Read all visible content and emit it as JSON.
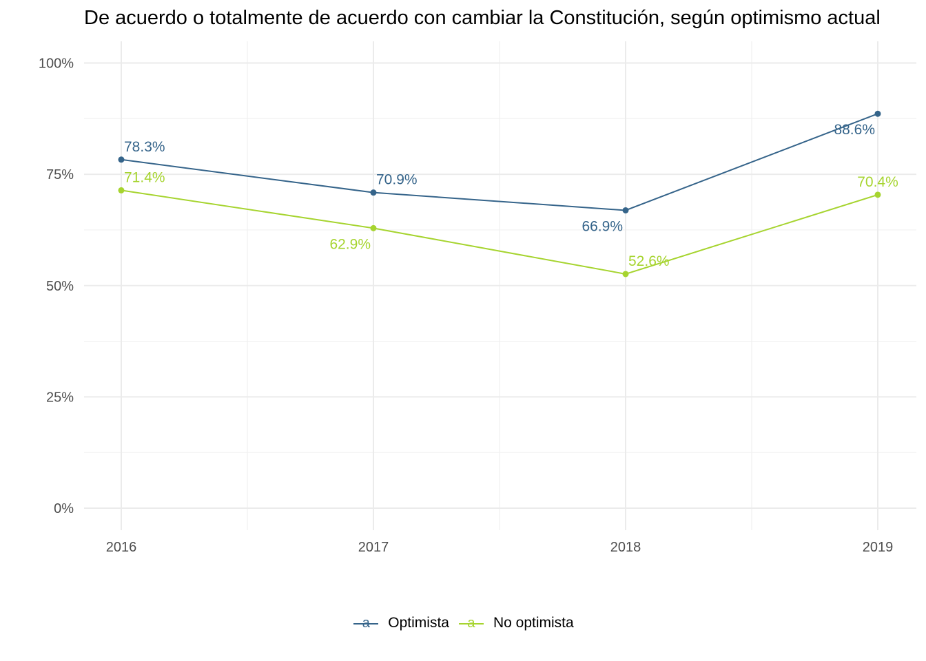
{
  "title": "De acuerdo o totalmente de acuerdo con cambiar la Constitución, según optimismo actual",
  "chart_data": {
    "type": "line",
    "title": "De acuerdo o totalmente de acuerdo con cambiar la Constitución, según optimismo actual",
    "xlabel": "",
    "ylabel": "",
    "categories": [
      "2016",
      "2017",
      "2018",
      "2019"
    ],
    "y_ticks": [
      "0%",
      "25%",
      "50%",
      "75%",
      "100%"
    ],
    "ylim": [
      0,
      100
    ],
    "grid": true,
    "legend_position": "bottom",
    "series": [
      {
        "name": "Optimista",
        "color": "#35648a",
        "values": [
          78.3,
          70.9,
          66.9,
          88.6
        ],
        "labels": [
          "78.3%",
          "70.9%",
          "66.9%",
          "88.6%"
        ]
      },
      {
        "name": "No optimista",
        "color": "#a6d42f",
        "values": [
          71.4,
          62.9,
          52.6,
          70.4
        ],
        "labels": [
          "71.4%",
          "62.9%",
          "52.6%",
          "70.4%"
        ]
      }
    ]
  },
  "legend": {
    "glyph": "a",
    "items": [
      "Optimista",
      "No optimista"
    ]
  }
}
